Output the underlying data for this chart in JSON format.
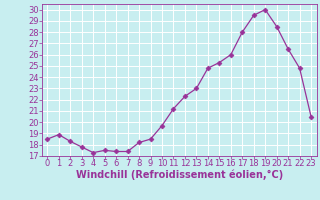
{
  "x": [
    0,
    1,
    2,
    3,
    4,
    5,
    6,
    7,
    8,
    9,
    10,
    11,
    12,
    13,
    14,
    15,
    16,
    17,
    18,
    19,
    20,
    21,
    22,
    23
  ],
  "y": [
    18.5,
    18.9,
    18.3,
    17.8,
    17.3,
    17.5,
    17.4,
    17.4,
    18.2,
    18.5,
    19.7,
    21.2,
    22.3,
    23.0,
    24.8,
    25.3,
    26.0,
    28.0,
    29.5,
    30.0,
    28.5,
    26.5,
    24.8,
    20.5
  ],
  "line_color": "#993399",
  "marker": "D",
  "marker_size": 2.5,
  "bg_color": "#c8eef0",
  "grid_color": "#aadddd",
  "xlabel": "Windchill (Refroidissement éolien,°C)",
  "xlabel_color": "#993399",
  "xlabel_fontsize": 7,
  "tick_color": "#993399",
  "tick_fontsize": 6,
  "ylim": [
    17,
    30.5
  ],
  "xlim": [
    -0.5,
    23.5
  ],
  "yticks": [
    17,
    18,
    19,
    20,
    21,
    22,
    23,
    24,
    25,
    26,
    27,
    28,
    29,
    30
  ],
  "xticks": [
    0,
    1,
    2,
    3,
    4,
    5,
    6,
    7,
    8,
    9,
    10,
    11,
    12,
    13,
    14,
    15,
    16,
    17,
    18,
    19,
    20,
    21,
    22,
    23
  ]
}
